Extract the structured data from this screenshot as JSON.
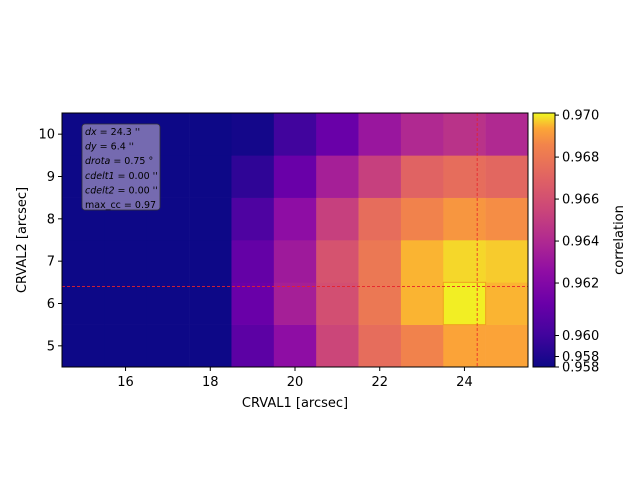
{
  "chart_data": {
    "type": "heatmap",
    "title": "",
    "xlabel": "CRVAL1 [arcsec]",
    "ylabel": "CRVAL2 [arcsec]",
    "xlim": [
      14.5,
      25.5
    ],
    "ylim": [
      4.5,
      10.5
    ],
    "x_centers": [
      15,
      16,
      17,
      18,
      19,
      20,
      21,
      22,
      23,
      24,
      25
    ],
    "y_centers": [
      5,
      6,
      7,
      8,
      9,
      10
    ],
    "x_ticks": [
      16,
      18,
      20,
      22,
      24
    ],
    "y_ticks": [
      5,
      6,
      7,
      8,
      9,
      10
    ],
    "colormap": "plasma",
    "values": [
      [
        0.958,
        0.958,
        0.958,
        0.958,
        0.9605,
        0.9625,
        0.9655,
        0.9675,
        0.9685,
        0.9693,
        0.9693
      ],
      [
        0.958,
        0.958,
        0.958,
        0.958,
        0.961,
        0.9635,
        0.966,
        0.968,
        0.9695,
        0.97,
        0.9695
      ],
      [
        0.958,
        0.958,
        0.958,
        0.958,
        0.9608,
        0.9632,
        0.9662,
        0.968,
        0.9695,
        0.9698,
        0.9697
      ],
      [
        0.958,
        0.958,
        0.958,
        0.958,
        0.96,
        0.9625,
        0.9652,
        0.9675,
        0.9685,
        0.969,
        0.9688
      ],
      [
        0.958,
        0.958,
        0.958,
        0.958,
        0.959,
        0.961,
        0.9635,
        0.9652,
        0.967,
        0.9675,
        0.9672
      ],
      [
        0.958,
        0.958,
        0.958,
        0.958,
        0.9582,
        0.9595,
        0.961,
        0.963,
        0.964,
        0.9645,
        0.964
      ]
    ],
    "colorbar": {
      "label": "correlation",
      "vmin": 0.958,
      "vmax": 0.9701,
      "ticks": [
        {
          "value": 0.958,
          "label": "0.958"
        },
        {
          "value": 0.9585,
          "label": "0.958"
        },
        {
          "value": 0.9595,
          "label": "0.960"
        },
        {
          "value": 0.962,
          "label": "0.962"
        },
        {
          "value": 0.964,
          "label": "0.964"
        },
        {
          "value": 0.966,
          "label": "0.966"
        },
        {
          "value": 0.968,
          "label": "0.968"
        },
        {
          "value": 0.97,
          "label": "0.970"
        }
      ]
    },
    "crosshair": {
      "x": 24.3,
      "y": 6.4,
      "color": "#e8202a"
    },
    "highlight_box": {
      "x0": 23.5,
      "x1": 24.5,
      "y0": 5.5,
      "y1": 6.5,
      "color": "#f0a020"
    },
    "annotation": {
      "lines": [
        {
          "name": "dx",
          "value": " = 24.3 ''"
        },
        {
          "name": "dy",
          "value": " = 6.4 ''"
        },
        {
          "name": "drota",
          "value": " = 0.75 °"
        },
        {
          "name": "cdelt1",
          "value": " = 0.00 ''"
        },
        {
          "name": "cdelt2",
          "value": " = 0.00 ''"
        }
      ],
      "max_cc": "max_cc = 0.97"
    }
  }
}
